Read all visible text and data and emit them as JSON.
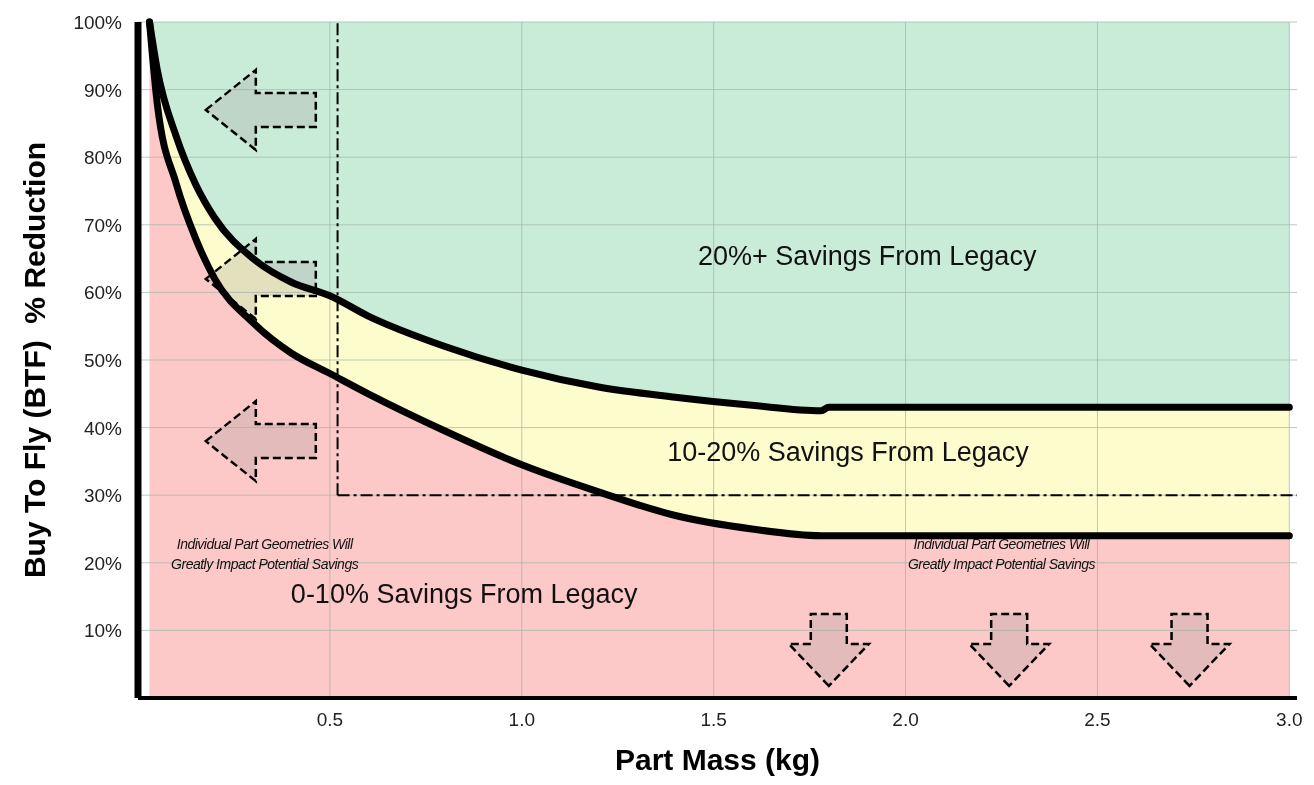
{
  "chart_data": {
    "type": "area",
    "stacked": true,
    "xlabel": "Part Mass (kg)",
    "ylabel": "Buy To Fly (BTF)  % Reduction",
    "xlim": [
      0,
      3.02
    ],
    "ylim": [
      0,
      100
    ],
    "xticks": [
      0.5,
      {
        "value": 1,
        "label": "1.0"
      },
      1.5,
      {
        "value": 2,
        "label": "2.0"
      },
      2.5,
      {
        "value": 3,
        "label": "3.0"
      }
    ],
    "yticks": [
      {
        "value": 10,
        "label": "10%"
      },
      {
        "value": 20,
        "label": "20%"
      },
      {
        "value": 30,
        "label": "30%"
      },
      {
        "value": 40,
        "label": "40%"
      },
      {
        "value": 50,
        "label": "50%"
      },
      {
        "value": 60,
        "label": "60%"
      },
      {
        "value": 70,
        "label": "70%"
      },
      {
        "value": 80,
        "label": "80%"
      },
      {
        "value": 90,
        "label": "90%"
      },
      {
        "value": 100,
        "label": "100%"
      }
    ],
    "grid": true,
    "x": [
      0.03,
      0.05,
      0.1,
      0.15,
      0.2,
      0.3,
      0.4,
      0.5,
      0.6,
      0.8,
      1.0,
      1.2,
      1.4,
      1.6,
      1.78,
      1.8,
      2.5,
      3.0
    ],
    "series": [
      {
        "color": "#fcc8c8",
        "values": [
          100,
          88,
          76,
          68,
          62,
          55.5,
          51,
          48,
          45,
          39.5,
          34.5,
          30.5,
          27,
          25,
          24,
          24,
          24,
          24
        ]
      },
      {
        "color": "#fdfccc",
        "values": [
          0,
          5,
          7,
          8,
          9,
          9.5,
          10.5,
          11.5,
          11.5,
          12.5,
          14,
          15.5,
          17.5,
          18.3,
          18.5,
          19,
          19,
          19
        ]
      },
      {
        "color": "#c9ecd9",
        "values": [
          0,
          7,
          17,
          24,
          29,
          35,
          38.5,
          40.5,
          43.5,
          48,
          51.5,
          54,
          55.5,
          56.7,
          57.5,
          57,
          57,
          57
        ]
      }
    ],
    "ref_lines": [
      {
        "axis": "x",
        "value": 0.52,
        "line_style": "dashed"
      },
      {
        "axis": "y",
        "value": 30,
        "line_style": "dashed"
      }
    ],
    "annotations": [
      "20%+ Savings From Legacy",
      "10-20% Savings From Legacy",
      "0-10% Savings From Legacy",
      "Individual Part Geometries Will\nGreatly Impact  Potential Savings",
      "Individual Part Geometries Will\nGreatly Impact  Potential Savings"
    ]
  }
}
